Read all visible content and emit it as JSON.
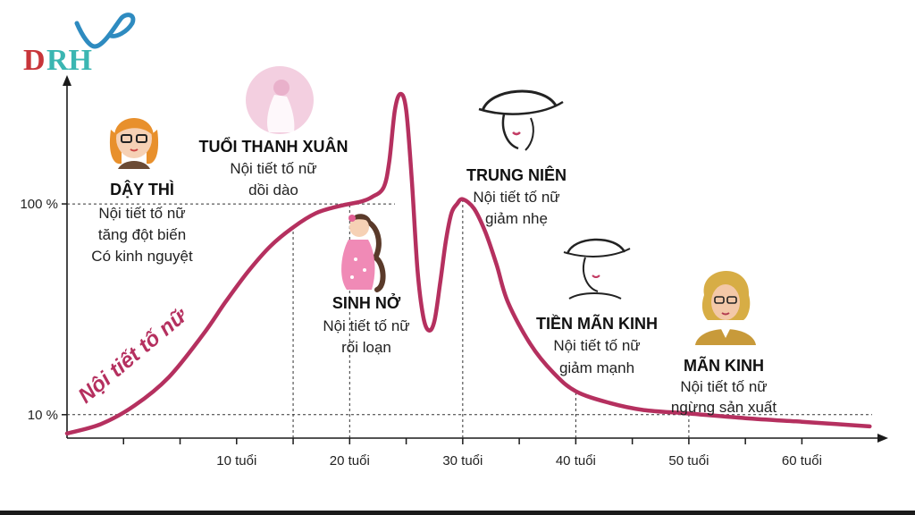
{
  "colors": {
    "curve": "#b5305f",
    "axis": "#1a1a1a",
    "logo_d": "#c8353a",
    "logo_rh": "#3bb6b2",
    "logo_swirl": "#2e8bc0"
  },
  "logo": {
    "text_d": "D",
    "text_rh": "RH"
  },
  "chart_data": {
    "type": "line",
    "title": "",
    "curve_label": "Nội tiết tố nữ",
    "x_unit": "tuổi",
    "xlim": [
      -5,
      67
    ],
    "ylim": [
      0,
      155
    ],
    "x_ticks": [
      0,
      5,
      10,
      15,
      20,
      25,
      30,
      35,
      40,
      45,
      50,
      55,
      60
    ],
    "x_tick_labels": [
      {
        "x": 10,
        "label": "10 tuổi"
      },
      {
        "x": 20,
        "label": "20 tuổi"
      },
      {
        "x": 30,
        "label": "30 tuổi"
      },
      {
        "x": 40,
        "label": "40 tuổi"
      },
      {
        "x": 50,
        "label": "50 tuổi"
      },
      {
        "x": 60,
        "label": "60 tuổi"
      }
    ],
    "y_ticks": [
      {
        "y": 10,
        "label": "10 %"
      },
      {
        "y": 100,
        "label": "100 %"
      }
    ],
    "guide_x": [
      15,
      20,
      30,
      40,
      50
    ],
    "series": [
      {
        "x": [
          -5,
          -2,
          1,
          4,
          7,
          9,
          11,
          13,
          15,
          17,
          19,
          21,
          22,
          23,
          23.5,
          24,
          24.5,
          25,
          25.5,
          26,
          26.5,
          27,
          27.5,
          28,
          28.5,
          29,
          29.5,
          30,
          31,
          32,
          33,
          34,
          36,
          38,
          40,
          43,
          46,
          50,
          55,
          60,
          63,
          66
        ],
        "y": [
          2,
          6,
          14,
          26,
          44,
          58,
          71,
          82,
          90,
          96,
          99,
          101,
          103,
          107,
          118,
          140,
          147,
          140,
          110,
          72,
          52,
          46,
          50,
          66,
          84,
          96,
          100,
          102,
          98,
          88,
          74,
          58,
          40,
          28,
          20,
          15,
          12,
          10.5,
          8.5,
          7,
          6,
          5
        ]
      }
    ]
  },
  "stages": [
    {
      "title": "DẬY THÌ",
      "lines": [
        "Nội tiết tố nữ",
        "tăng đột biến",
        "Có kinh nguyệt"
      ]
    },
    {
      "title": "TUỔI THANH XUÂN",
      "lines": [
        "Nội tiết tố nữ",
        "dồi dào"
      ]
    },
    {
      "title": "SINH NỞ",
      "lines": [
        "Nội tiết tố nữ",
        "rối loạn"
      ]
    },
    {
      "title": "TRUNG NIÊN",
      "lines": [
        "Nội tiết tố nữ",
        "giảm nhẹ"
      ]
    },
    {
      "title": "TIỀN MÃN KINH",
      "lines": [
        "Nội tiết tố nữ",
        "giảm mạnh"
      ]
    },
    {
      "title": "MÃN KINH",
      "lines": [
        "Nội tiết tố nữ",
        "ngừng sản xuất"
      ]
    }
  ]
}
